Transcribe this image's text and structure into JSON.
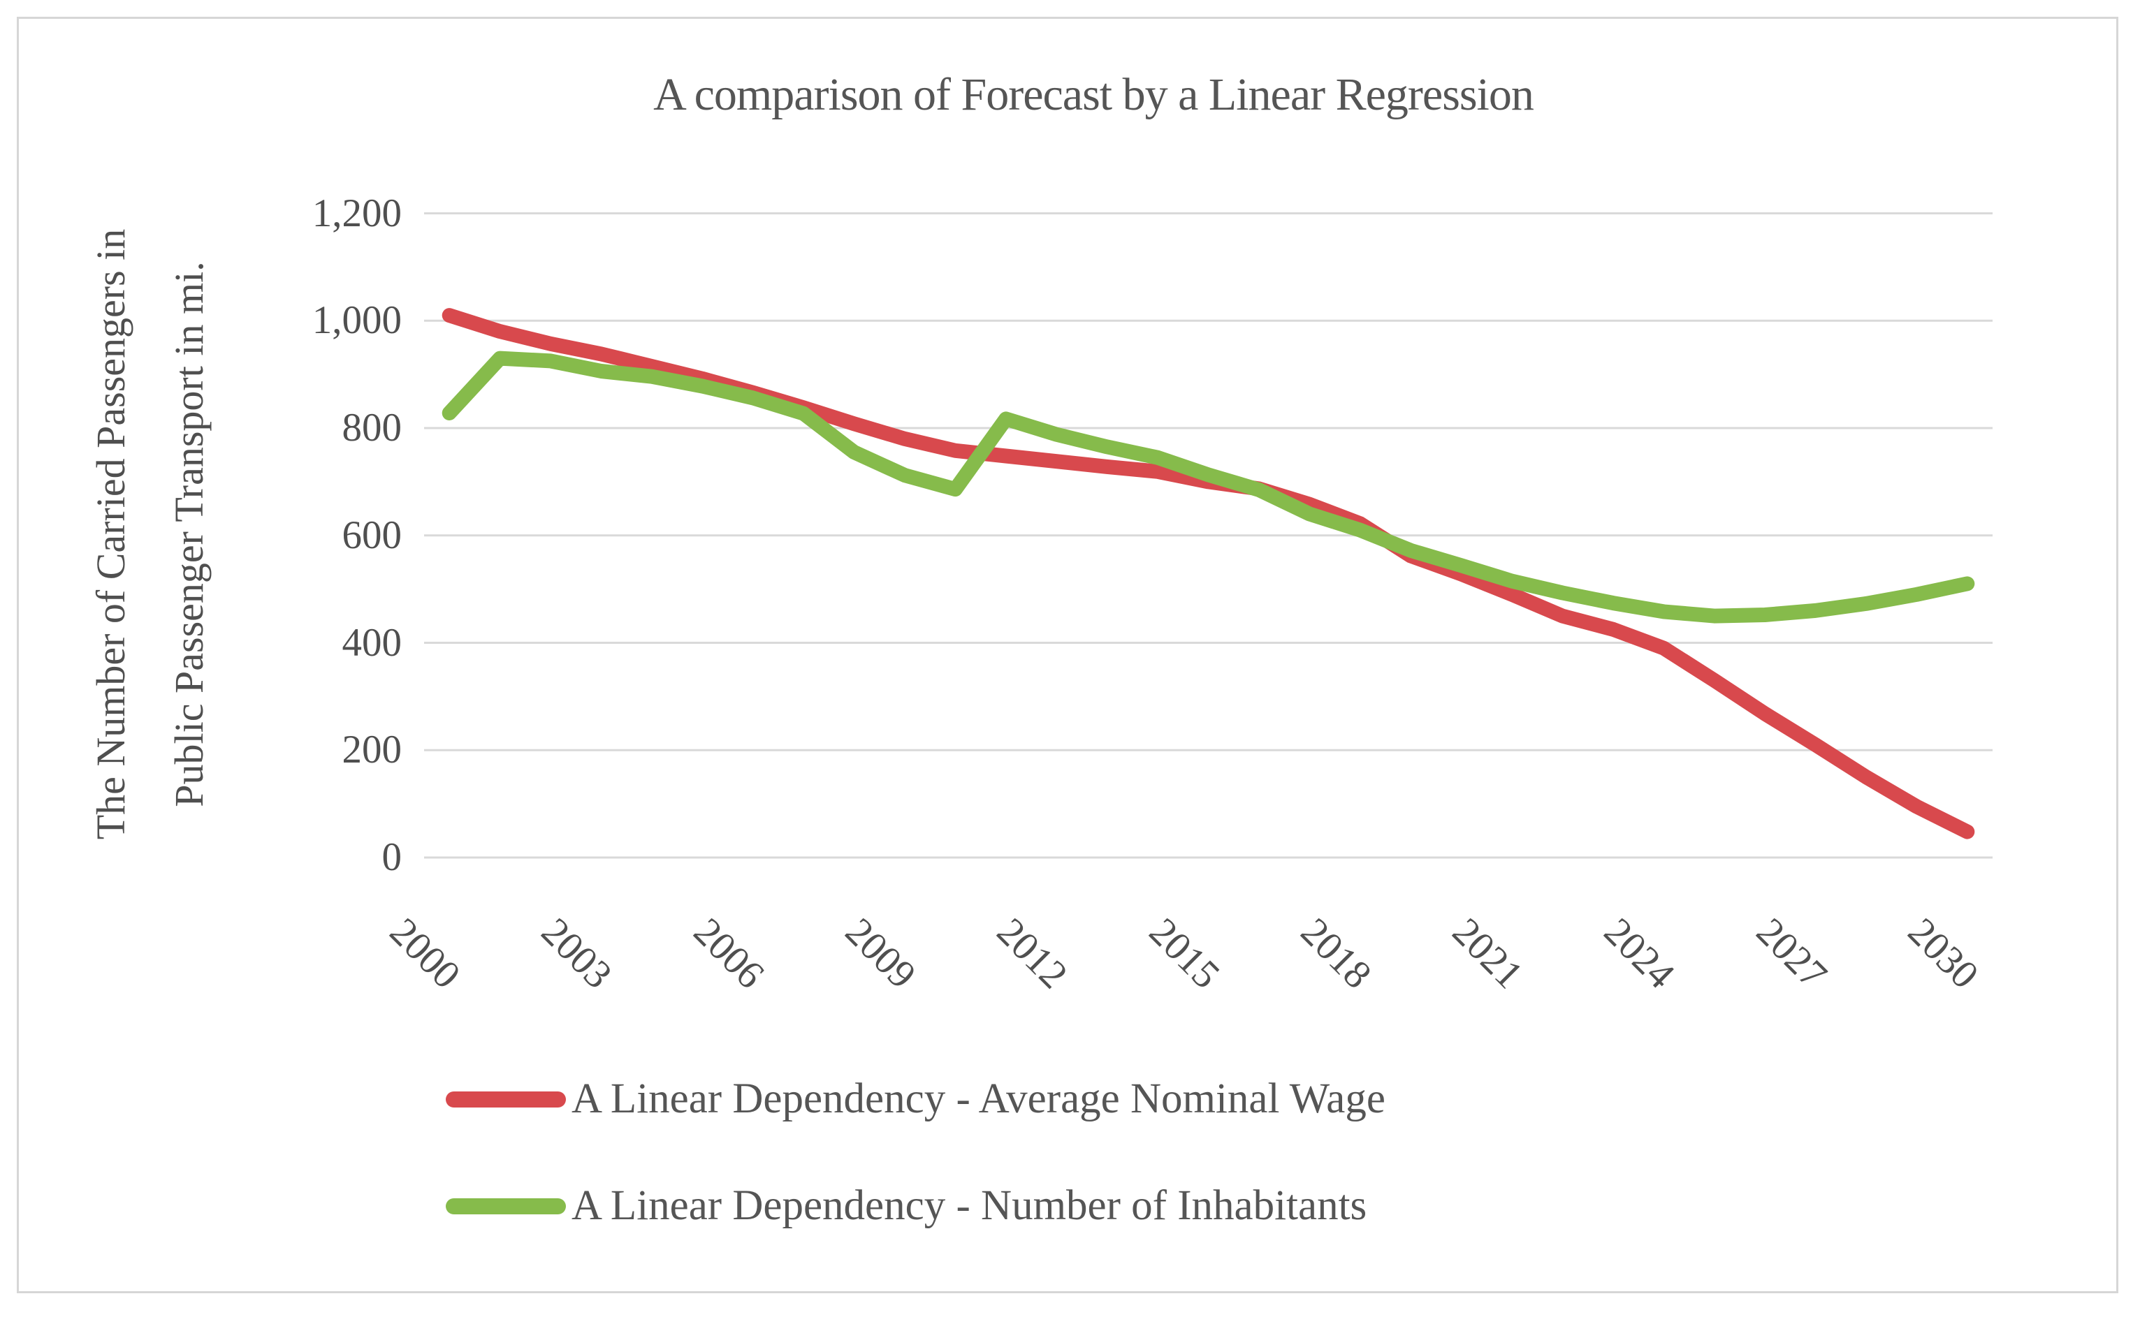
{
  "title": "A comparison of Forecast by a Linear Regression",
  "y_axis": {
    "title_line1": "The Number of Carried Passengers in",
    "title_line2": "Public Passenger Transport in mi.",
    "ticks": [
      "0",
      "200",
      "400",
      "600",
      "800",
      "1,000",
      "1,200"
    ],
    "tick_step": 200
  },
  "x_axis": {
    "tick_years": [
      2000,
      2003,
      2006,
      2009,
      2012,
      2015,
      2018,
      2021,
      2024,
      2027,
      2030
    ]
  },
  "legend": {
    "items": [
      {
        "label": "A Linear Dependency - Average Nominal Wage",
        "color": "#d8494d"
      },
      {
        "label": "A Linear Dependency - Number of Inhabitants",
        "color": "#86bb4b"
      }
    ]
  },
  "colors": {
    "gridline": "#d9d9d9",
    "frame": "#d6d6d6",
    "text": "#4f4f4f",
    "red_series": "#d8494d",
    "green_series": "#86bb4b"
  },
  "chart_data": {
    "type": "line",
    "title": "A comparison of Forecast by a Linear Regression",
    "xlabel": "",
    "ylabel": "The Number of Carried Passengers in Public Passenger Transport in mi.",
    "ylim": [
      0,
      1200
    ],
    "ytick_interval": 200,
    "grid": true,
    "legend_position": "bottom-left",
    "x": [
      2000,
      2001,
      2002,
      2003,
      2004,
      2005,
      2006,
      2007,
      2008,
      2009,
      2010,
      2011,
      2012,
      2013,
      2014,
      2015,
      2016,
      2017,
      2018,
      2019,
      2020,
      2021,
      2022,
      2023,
      2024,
      2025,
      2026,
      2027,
      2028,
      2029,
      2030
    ],
    "series": [
      {
        "name": "A Linear Dependency - Average Nominal Wage",
        "color": "#d8494d",
        "values": [
          1010,
          980,
          957,
          938,
          915,
          892,
          866,
          838,
          808,
          780,
          758,
          748,
          738,
          728,
          719,
          700,
          687,
          658,
          622,
          562,
          528,
          490,
          450,
          425,
          390,
          330,
          268,
          210,
          150,
          95,
          48
        ]
      },
      {
        "name": "A Linear Dependency - Number of Inhabitants",
        "color": "#86bb4b",
        "values": [
          828,
          930,
          925,
          906,
          896,
          878,
          856,
          827,
          755,
          712,
          686,
          817,
          788,
          765,
          745,
          713,
          685,
          640,
          610,
          572,
          544,
          515,
          493,
          474,
          458,
          450,
          452,
          460,
          473,
          490,
          510
        ]
      }
    ]
  }
}
